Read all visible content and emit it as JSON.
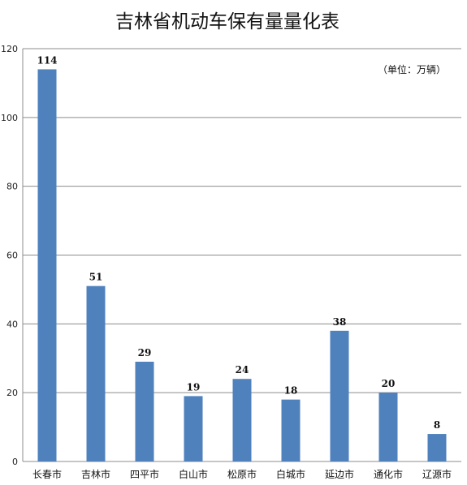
{
  "chart_data": {
    "type": "bar",
    "title": "吉林省机动车保有量量化表",
    "unit_note": "（单位：万辆）",
    "xlabel": "",
    "ylabel": "",
    "categories": [
      "长春市",
      "吉林市",
      "四平市",
      "白山市",
      "松原市",
      "白城市",
      "延边市",
      "通化市",
      "辽源市"
    ],
    "values": [
      114,
      51,
      29,
      19,
      24,
      18,
      38,
      20,
      8
    ],
    "ylim": [
      0,
      120
    ],
    "yticks": [
      0,
      20,
      40,
      60,
      80,
      100,
      120
    ],
    "grid": true,
    "legend": "none",
    "bar_color": "#4F81BD"
  }
}
